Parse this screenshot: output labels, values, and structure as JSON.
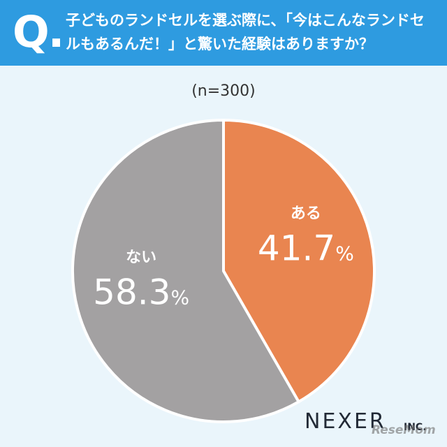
{
  "header": {
    "q_mark": "Q.",
    "question": "子どものランドセルを選ぶ際に、「今はこんなランドセルもあるんだ！」と驚いた経験はありますか？"
  },
  "sample_label": "(n=300)",
  "colors": {
    "header_bg": "#2e9be0",
    "background": "#eaf5fb",
    "aru": "#e98550",
    "nai": "#a3a1a2"
  },
  "chart_data": {
    "type": "pie",
    "title": "",
    "slices": [
      {
        "label": "ある",
        "value": 41.7,
        "value_label": "41.7%",
        "color": "#e98550"
      },
      {
        "label": "ない",
        "value": 58.3,
        "value_label": "58.3%",
        "color": "#a3a1a2"
      }
    ],
    "start_angle": "12 o'clock",
    "direction": "clockwise"
  },
  "brand": {
    "name": "NEXER",
    "suffix": "INC."
  },
  "watermark": "ReseMom"
}
